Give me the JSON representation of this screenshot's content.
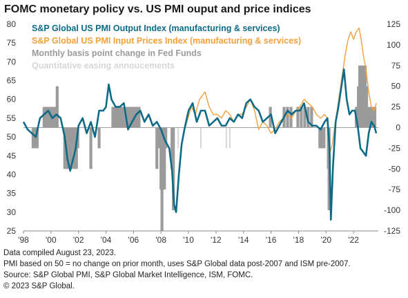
{
  "title": "FOMC monetary policy vs. US PMI ouput and price indices",
  "footnotes": [
    "Data compiled August 23, 2023.",
    "PMI based on 50 = no change on prior month, uses S&P Global data post-2007 and ISM pre-2007.",
    "Source: S&P Global PMI, S&P Global Market Intelligence, ISM, FOMC.",
    "© 2023 S&P Global."
  ],
  "colors": {
    "output": "#0d6b87",
    "prices": "#f2a13c",
    "fedfunds": "#9b9b9b",
    "qe": "#d6d6d6",
    "zero_line": "#a0a0a0"
  },
  "chart_data": {
    "type": "line",
    "title": "FOMC monetary policy vs. US PMI ouput and price indices",
    "x_range": [
      1998,
      2023.8
    ],
    "x_ticks": [
      "'98",
      "'00",
      "'02",
      "'04",
      "'06",
      "'08",
      "'10",
      "'12",
      "'14",
      "'16",
      "'18",
      "'20",
      "'22"
    ],
    "x_tick_years": [
      1998,
      2000,
      2002,
      2004,
      2006,
      2008,
      2010,
      2012,
      2014,
      2016,
      2018,
      2020,
      2022
    ],
    "y_left": {
      "range": [
        25,
        80
      ],
      "ticks": [
        25,
        30,
        35,
        40,
        45,
        50,
        55,
        60,
        65,
        70,
        75,
        80
      ]
    },
    "y_right": {
      "range": [
        -125,
        125
      ],
      "ticks": [
        -125,
        -100,
        -75,
        -50,
        -25,
        0,
        25,
        50,
        75,
        100,
        125
      ]
    },
    "legend_placement": "top-left",
    "series": [
      {
        "name": "S&P Global US PMI Output Index (manufacturing & services)",
        "axis": "left",
        "x": [
          1998.0,
          1998.3,
          1998.6,
          1998.9,
          1999.2,
          1999.5,
          1999.8,
          2000.1,
          2000.4,
          2000.7,
          2001.0,
          2001.2,
          2001.4,
          2001.6,
          2001.8,
          2002.0,
          2002.3,
          2002.6,
          2002.9,
          2003.2,
          2003.5,
          2003.8,
          2004.0,
          2004.2,
          2004.4,
          2004.7,
          2005.0,
          2005.3,
          2005.6,
          2005.9,
          2006.2,
          2006.5,
          2006.8,
          2007.1,
          2007.4,
          2007.7,
          2008.0,
          2008.3,
          2008.6,
          2008.8,
          2008.95,
          2009.1,
          2009.3,
          2009.5,
          2009.7,
          2010.0,
          2010.3,
          2010.6,
          2010.9,
          2011.2,
          2011.5,
          2011.8,
          2012.1,
          2012.4,
          2012.7,
          2013.0,
          2013.3,
          2013.6,
          2013.9,
          2014.2,
          2014.5,
          2014.8,
          2015.1,
          2015.4,
          2015.7,
          2016.0,
          2016.3,
          2016.6,
          2016.9,
          2017.2,
          2017.5,
          2017.8,
          2018.1,
          2018.4,
          2018.7,
          2019.0,
          2019.3,
          2019.6,
          2019.9,
          2020.1,
          2020.25,
          2020.35,
          2020.5,
          2020.7,
          2020.9,
          2021.1,
          2021.3,
          2021.5,
          2021.7,
          2021.9,
          2022.1,
          2022.3,
          2022.5,
          2022.7,
          2022.9,
          2023.1,
          2023.3,
          2023.5,
          2023.65
        ],
        "values": [
          54,
          52,
          51,
          50,
          55,
          56,
          57,
          55,
          56,
          55,
          50,
          44,
          41,
          44,
          47,
          53,
          55,
          51,
          54,
          50,
          57,
          57,
          58,
          64,
          60,
          58,
          58,
          59,
          52,
          54,
          56,
          57,
          54,
          56,
          53,
          54,
          52,
          49,
          47,
          41,
          32,
          30,
          40,
          48,
          52,
          57,
          59,
          54,
          57,
          57,
          53,
          54,
          55,
          53,
          53,
          55,
          54,
          56,
          55,
          59,
          60,
          58,
          57,
          54,
          55,
          56,
          51,
          53,
          55,
          57,
          56,
          57,
          57,
          59,
          54,
          53,
          53,
          52,
          54,
          55,
          47,
          28,
          42,
          54,
          58,
          63,
          68,
          60,
          56,
          57,
          57,
          53,
          47,
          46,
          45,
          51,
          54,
          53,
          51
        ]
      },
      {
        "name": "S&P Global US PMI Input Prices Index (manufacturing & services)",
        "axis": "left",
        "x": [
          2009.8,
          2010.2,
          2010.5,
          2010.8,
          2011.2,
          2011.5,
          2011.8,
          2012.1,
          2012.4,
          2012.7,
          2013.0,
          2013.3,
          2013.6,
          2013.9,
          2014.2,
          2014.5,
          2014.8,
          2015.1,
          2015.4,
          2015.7,
          2016.0,
          2016.3,
          2016.6,
          2016.9,
          2017.2,
          2017.5,
          2017.8,
          2018.1,
          2018.4,
          2018.7,
          2019.0,
          2019.3,
          2019.6,
          2019.9,
          2020.1,
          2020.3,
          2020.45,
          2020.6,
          2020.8,
          2021.0,
          2021.2,
          2021.4,
          2021.6,
          2021.8,
          2022.0,
          2022.2,
          2022.4,
          2022.55,
          2022.7,
          2022.9,
          2023.1,
          2023.3,
          2023.5,
          2023.65
        ],
        "values": [
          53,
          58,
          56,
          60,
          62,
          58,
          56,
          56,
          55,
          57,
          56,
          54,
          56,
          56,
          58,
          60,
          57,
          52,
          54,
          53,
          51,
          52,
          54,
          55,
          56,
          55,
          57,
          58,
          60,
          59,
          58,
          56,
          55,
          56,
          55,
          46,
          48,
          52,
          57,
          62,
          67,
          72,
          76,
          78,
          76,
          78,
          79,
          76,
          72,
          68,
          62,
          58,
          57,
          59
        ]
      }
    ],
    "bar_series": [
      {
        "name": "Monthly basis point change in Fed Funds",
        "axis": "right",
        "bars": [
          [
            1998.7,
            -25
          ],
          [
            1998.85,
            -25
          ],
          [
            1999.0,
            -25
          ],
          [
            1999.5,
            25
          ],
          [
            1999.7,
            25
          ],
          [
            1999.9,
            25
          ],
          [
            2000.1,
            25
          ],
          [
            2000.3,
            25
          ],
          [
            2000.45,
            50
          ],
          [
            2001.0,
            -50
          ],
          [
            2001.1,
            -50
          ],
          [
            2001.2,
            -50
          ],
          [
            2001.35,
            -50
          ],
          [
            2001.5,
            -50
          ],
          [
            2001.62,
            -25
          ],
          [
            2001.72,
            -50
          ],
          [
            2001.85,
            -50
          ],
          [
            2001.95,
            -25
          ],
          [
            2002.9,
            -50
          ],
          [
            2003.5,
            -25
          ],
          [
            2004.5,
            25
          ],
          [
            2004.6,
            25
          ],
          [
            2004.75,
            25
          ],
          [
            2004.9,
            25
          ],
          [
            2005.0,
            25
          ],
          [
            2005.2,
            25
          ],
          [
            2005.4,
            25
          ],
          [
            2005.6,
            25
          ],
          [
            2005.8,
            25
          ],
          [
            2006.0,
            25
          ],
          [
            2006.2,
            25
          ],
          [
            2006.4,
            25
          ],
          [
            2007.7,
            -50
          ],
          [
            2007.85,
            -25
          ],
          [
            2008.0,
            -75
          ],
          [
            2008.07,
            -125
          ],
          [
            2008.25,
            -75
          ],
          [
            2008.35,
            -25
          ],
          [
            2008.8,
            -50
          ],
          [
            2008.9,
            -100
          ],
          [
            2015.95,
            25
          ],
          [
            2016.95,
            25
          ],
          [
            2017.2,
            25
          ],
          [
            2017.45,
            25
          ],
          [
            2017.95,
            25
          ],
          [
            2018.2,
            25
          ],
          [
            2018.45,
            25
          ],
          [
            2018.7,
            25
          ],
          [
            2018.95,
            25
          ],
          [
            2019.55,
            -25
          ],
          [
            2019.7,
            -25
          ],
          [
            2019.85,
            -25
          ],
          [
            2020.17,
            -50
          ],
          [
            2020.22,
            -100
          ],
          [
            2022.2,
            25
          ],
          [
            2022.35,
            50
          ],
          [
            2022.45,
            75
          ],
          [
            2022.55,
            75
          ],
          [
            2022.7,
            75
          ],
          [
            2022.85,
            75
          ],
          [
            2022.95,
            50
          ],
          [
            2023.1,
            25
          ],
          [
            2023.2,
            25
          ],
          [
            2023.35,
            25
          ],
          [
            2023.55,
            25
          ]
        ]
      },
      {
        "name": "Quantitative easing annoucements",
        "axis": "right",
        "spans": [
          [
            2008.9,
            2009.0,
            -25
          ],
          [
            2009.2,
            2009.3,
            -25
          ],
          [
            2010.85,
            2010.95,
            -25
          ],
          [
            2012.7,
            2012.8,
            -25
          ],
          [
            2012.95,
            2013.05,
            -25
          ]
        ]
      }
    ]
  }
}
